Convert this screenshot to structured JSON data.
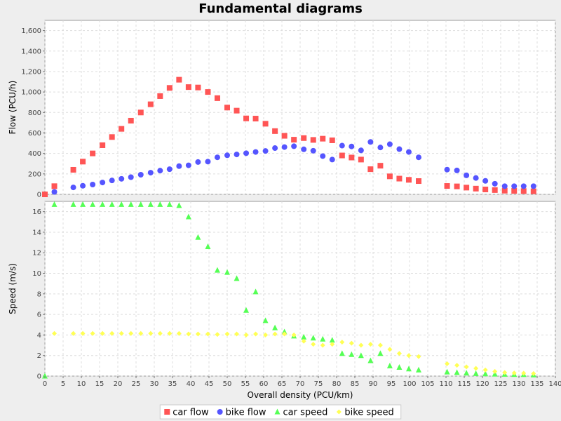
{
  "chart_data": {
    "type": "scatter",
    "title": "Fundamental diagrams",
    "xlabel": "Overall density (PCU/km)",
    "xlim": [
      0,
      140
    ],
    "x_ticks": [
      0,
      5,
      10,
      15,
      20,
      25,
      30,
      35,
      40,
      45,
      50,
      55,
      60,
      65,
      70,
      75,
      80,
      85,
      90,
      95,
      100,
      105,
      110,
      115,
      120,
      125,
      130,
      135,
      140
    ],
    "grid": true,
    "legend_position": "bottom",
    "panels": [
      {
        "ylabel": "Flow (PCU/h)",
        "ylim": [
          0,
          1700
        ],
        "y_ticks": [
          0,
          200,
          400,
          600,
          800,
          1000,
          1200,
          1400,
          1600
        ],
        "y_tick_labels": [
          "0",
          "200",
          "400",
          "600",
          "800",
          "1,000",
          "1,200",
          "1,400",
          "1,600"
        ],
        "series": [
          {
            "name": "car flow",
            "color": "#ff5555",
            "marker": "square",
            "points": [
              [
                0,
                0
              ],
              [
                2.6,
                80
              ],
              [
                7.8,
                240
              ],
              [
                10.4,
                320
              ],
              [
                13.1,
                400
              ],
              [
                15.8,
                480
              ],
              [
                18.4,
                560
              ],
              [
                21,
                640
              ],
              [
                23.6,
                720
              ],
              [
                26.3,
                800
              ],
              [
                29,
                880
              ],
              [
                31.6,
                960
              ],
              [
                34.2,
                1040
              ],
              [
                36.8,
                1120
              ],
              [
                39.4,
                1048
              ],
              [
                42,
                1044
              ],
              [
                44.7,
                1000
              ],
              [
                47.3,
                940
              ],
              [
                50,
                848
              ],
              [
                52.6,
                818
              ],
              [
                55.2,
                742
              ],
              [
                57.8,
                740
              ],
              [
                60.5,
                690
              ],
              [
                63.1,
                618
              ],
              [
                65.7,
                572
              ],
              [
                68.3,
                534
              ],
              [
                71,
                550
              ],
              [
                73.6,
                532
              ],
              [
                76.2,
                544
              ],
              [
                78.8,
                528
              ],
              [
                81.5,
                380
              ],
              [
                84.1,
                360
              ],
              [
                86.7,
                340
              ],
              [
                89.3,
                246
              ],
              [
                92,
                280
              ],
              [
                94.6,
                176
              ],
              [
                97.2,
                154
              ],
              [
                99.8,
                142
              ],
              [
                102.5,
                130
              ],
              [
                110.3,
                82
              ],
              [
                113,
                78
              ],
              [
                115.6,
                66
              ],
              [
                118.2,
                56
              ],
              [
                120.8,
                48
              ],
              [
                123.4,
                42
              ],
              [
                126.1,
                36
              ],
              [
                128.7,
                34
              ],
              [
                131.3,
                32
              ],
              [
                134,
                30
              ]
            ]
          },
          {
            "name": "bike flow",
            "color": "#5555ff",
            "marker": "circle",
            "points": [
              [
                2.6,
                24
              ],
              [
                7.8,
                68
              ],
              [
                10.4,
                84
              ],
              [
                13.1,
                96
              ],
              [
                15.8,
                116
              ],
              [
                18.4,
                136
              ],
              [
                21,
                152
              ],
              [
                23.6,
                168
              ],
              [
                26.3,
                192
              ],
              [
                29,
                212
              ],
              [
                31.6,
                232
              ],
              [
                34.2,
                246
              ],
              [
                36.8,
                276
              ],
              [
                39.4,
                284
              ],
              [
                42,
                316
              ],
              [
                44.7,
                320
              ],
              [
                47.3,
                362
              ],
              [
                50,
                382
              ],
              [
                52.6,
                390
              ],
              [
                55.2,
                402
              ],
              [
                57.8,
                414
              ],
              [
                60.5,
                424
              ],
              [
                63.1,
                452
              ],
              [
                65.7,
                462
              ],
              [
                68.3,
                470
              ],
              [
                71,
                440
              ],
              [
                73.6,
                426
              ],
              [
                76.2,
                374
              ],
              [
                78.8,
                340
              ],
              [
                81.5,
                476
              ],
              [
                84.1,
                468
              ],
              [
                86.7,
                430
              ],
              [
                89.3,
                512
              ],
              [
                92,
                458
              ],
              [
                94.6,
                490
              ],
              [
                97.2,
                442
              ],
              [
                99.8,
                414
              ],
              [
                102.5,
                362
              ],
              [
                110.3,
                242
              ],
              [
                113,
                234
              ],
              [
                115.6,
                186
              ],
              [
                118.2,
                160
              ],
              [
                120.8,
                132
              ],
              [
                123.4,
                104
              ],
              [
                126.1,
                80
              ],
              [
                128.7,
                80
              ],
              [
                131.3,
                80
              ],
              [
                134,
                80
              ]
            ]
          }
        ]
      },
      {
        "ylabel": "Speed (m/s)",
        "ylim": [
          0,
          17
        ],
        "y_ticks": [
          0,
          2,
          4,
          6,
          8,
          10,
          12,
          14,
          16
        ],
        "y_tick_labels": [
          "0",
          "2",
          "4",
          "6",
          "8",
          "10",
          "12",
          "14",
          "16"
        ],
        "series": [
          {
            "name": "car speed",
            "color": "#55ff55",
            "marker": "triangle",
            "points": [
              [
                0,
                0
              ],
              [
                2.6,
                16.7
              ],
              [
                7.8,
                16.7
              ],
              [
                10.4,
                16.7
              ],
              [
                13.1,
                16.7
              ],
              [
                15.8,
                16.7
              ],
              [
                18.4,
                16.7
              ],
              [
                21,
                16.7
              ],
              [
                23.6,
                16.7
              ],
              [
                26.3,
                16.7
              ],
              [
                29,
                16.7
              ],
              [
                31.6,
                16.7
              ],
              [
                34.2,
                16.7
              ],
              [
                36.8,
                16.6
              ],
              [
                39.4,
                15.5
              ],
              [
                42,
                13.5
              ],
              [
                44.7,
                12.6
              ],
              [
                47.3,
                10.3
              ],
              [
                50,
                10.1
              ],
              [
                52.6,
                9.5
              ],
              [
                55.2,
                6.4
              ],
              [
                57.8,
                8.2
              ],
              [
                60.5,
                5.4
              ],
              [
                63.1,
                4.7
              ],
              [
                65.7,
                4.3
              ],
              [
                68.3,
                3.9
              ],
              [
                71,
                3.8
              ],
              [
                73.6,
                3.7
              ],
              [
                76.2,
                3.6
              ],
              [
                78.8,
                3.5
              ],
              [
                81.5,
                2.2
              ],
              [
                84.1,
                2.1
              ],
              [
                86.7,
                2.0
              ],
              [
                89.3,
                1.5
              ],
              [
                92,
                2.2
              ],
              [
                94.6,
                1.0
              ],
              [
                97.2,
                0.85
              ],
              [
                99.8,
                0.7
              ],
              [
                102.5,
                0.6
              ],
              [
                110.3,
                0.4
              ],
              [
                113,
                0.35
              ],
              [
                115.6,
                0.3
              ],
              [
                118.2,
                0.25
              ],
              [
                120.8,
                0.22
              ],
              [
                123.4,
                0.2
              ],
              [
                126.1,
                0.18
              ],
              [
                128.7,
                0.16
              ],
              [
                131.3,
                0.15
              ],
              [
                134,
                0.12
              ]
            ]
          },
          {
            "name": "bike speed",
            "color": "#ffff55",
            "marker": "diamond",
            "points": [
              [
                2.6,
                4.15
              ],
              [
                7.8,
                4.15
              ],
              [
                10.4,
                4.15
              ],
              [
                13.1,
                4.15
              ],
              [
                15.8,
                4.15
              ],
              [
                18.4,
                4.15
              ],
              [
                21,
                4.15
              ],
              [
                23.6,
                4.15
              ],
              [
                26.3,
                4.15
              ],
              [
                29,
                4.15
              ],
              [
                31.6,
                4.15
              ],
              [
                34.2,
                4.15
              ],
              [
                36.8,
                4.15
              ],
              [
                39.4,
                4.1
              ],
              [
                42,
                4.1
              ],
              [
                44.7,
                4.1
              ],
              [
                47.3,
                4.05
              ],
              [
                50,
                4.1
              ],
              [
                52.6,
                4.1
              ],
              [
                55.2,
                4.0
              ],
              [
                57.8,
                4.1
              ],
              [
                60.5,
                4.0
              ],
              [
                63.1,
                4.1
              ],
              [
                65.7,
                4.1
              ],
              [
                68.3,
                4.0
              ],
              [
                71,
                3.4
              ],
              [
                73.6,
                3.1
              ],
              [
                76.2,
                3.0
              ],
              [
                78.8,
                3.1
              ],
              [
                81.5,
                3.3
              ],
              [
                84.1,
                3.2
              ],
              [
                86.7,
                3.0
              ],
              [
                89.3,
                3.1
              ],
              [
                92,
                3.0
              ],
              [
                94.6,
                2.6
              ],
              [
                97.2,
                2.2
              ],
              [
                99.8,
                2.0
              ],
              [
                102.5,
                1.9
              ],
              [
                110.3,
                1.2
              ],
              [
                113,
                1.05
              ],
              [
                115.6,
                0.9
              ],
              [
                118.2,
                0.75
              ],
              [
                120.8,
                0.6
              ],
              [
                123.4,
                0.45
              ],
              [
                126.1,
                0.35
              ],
              [
                128.7,
                0.3
              ],
              [
                131.3,
                0.28
              ],
              [
                134,
                0.25
              ]
            ]
          }
        ]
      }
    ]
  }
}
